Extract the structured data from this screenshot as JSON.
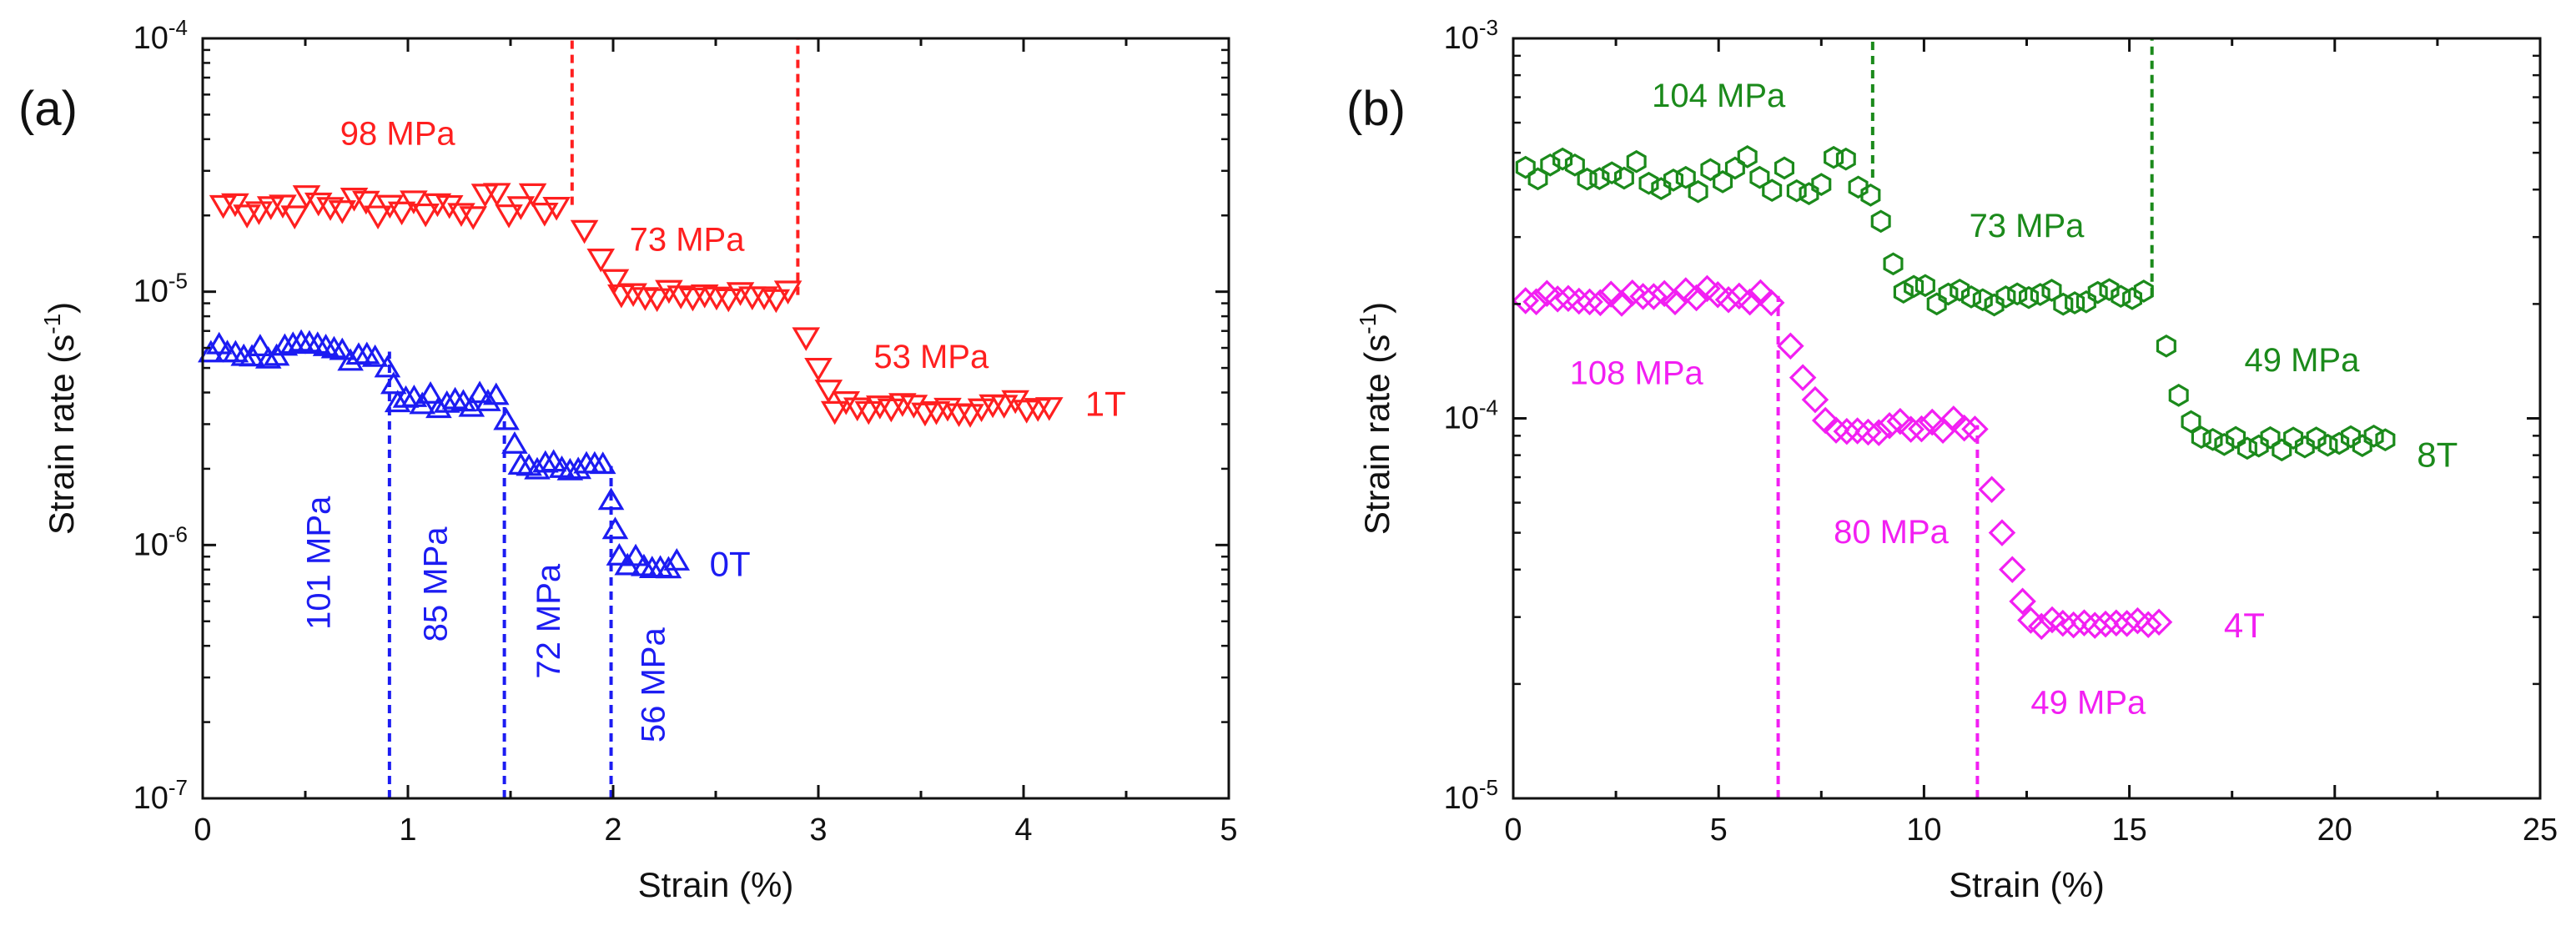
{
  "chart_data": [
    {
      "type": "scatter",
      "panel_label": "(a)",
      "xlabel": "Strain (%)",
      "ylabel_main": "Strain rate (s",
      "ylabel_sup": "-1",
      "ylabel_close": ")",
      "yscale": "log",
      "xlim": [
        0,
        5
      ],
      "ylim": [
        1e-07,
        0.0001
      ],
      "xticks": [
        0,
        1,
        2,
        3,
        4,
        5
      ],
      "xtick_labels": [
        "0",
        "1",
        "2",
        "3",
        "4",
        "5"
      ],
      "ytick_exponents": [
        -7,
        -6,
        -5,
        -4
      ],
      "ytick_base": "10",
      "ytick_exp_labels": [
        "-7",
        "-6",
        "-5",
        "-4"
      ],
      "series": [
        {
          "name": "1T",
          "marker": "triangle-down",
          "color": "#ff1f1f",
          "label_at": [
            4.3,
            3.6e-06
          ],
          "segments": [
            {
              "from": 0.1,
              "to": 1.78,
              "step": 0.058,
              "rate": 2.2e-05,
              "jitter": 0.05
            },
            {
              "points": [
                [
                  1.86,
                  1.75e-05
                ],
                [
                  1.94,
                  1.35e-05
                ],
                [
                  2.01,
                  1.12e-05
                ]
              ]
            },
            {
              "from": 2.04,
              "to": 2.9,
              "step": 0.058,
              "rate": 9.7e-06,
              "jitter": 0.02
            },
            {
              "points": [
                [
                  2.94,
                  6.6e-06
                ],
                [
                  3.0,
                  5e-06
                ],
                [
                  3.05,
                  4.1e-06
                ]
              ]
            },
            {
              "from": 3.08,
              "to": 4.16,
              "step": 0.055,
              "rate": 3.5e-06,
              "jitter": 0.03
            }
          ]
        },
        {
          "name": "0T",
          "marker": "triangle-up",
          "color": "#1c1cf2",
          "label_at": [
            2.47,
            8.4e-07
          ],
          "segments": [
            {
              "from": 0.04,
              "to": 0.86,
              "step": 0.04,
              "rate": 5.8e-06,
              "jitter": 0.04
            },
            {
              "points": [
                [
                  0.9,
                  5e-06
                ],
                [
                  0.93,
                  4.3e-06
                ]
              ]
            },
            {
              "from": 0.95,
              "to": 1.44,
              "step": 0.04,
              "rate": 3.7e-06,
              "jitter": 0.03
            },
            {
              "points": [
                [
                  1.48,
                  3.1e-06
                ],
                [
                  1.52,
                  2.5e-06
                ]
              ]
            },
            {
              "from": 1.55,
              "to": 1.96,
              "step": 0.04,
              "rate": 2.05e-06,
              "jitter": 0.02
            },
            {
              "points": [
                [
                  1.99,
                  1.5e-06
                ],
                [
                  2.01,
                  1.15e-06
                ]
              ]
            },
            {
              "from": 2.03,
              "to": 2.31,
              "step": 0.04,
              "rate": 8.6e-07,
              "jitter": 0.03
            }
          ]
        }
      ],
      "vlines": [
        {
          "x": 1.8,
          "from": 2.2e-05,
          "to": 0.0001,
          "color": "#ff1f1f"
        },
        {
          "x": 2.9,
          "from": 9.7e-06,
          "to": 0.0001,
          "color": "#ff1f1f"
        },
        {
          "x": 0.91,
          "from": 1e-07,
          "to": 5.8e-06,
          "color": "#1c1cf2"
        },
        {
          "x": 1.47,
          "from": 1e-07,
          "to": 3.7e-06,
          "color": "#1c1cf2"
        },
        {
          "x": 1.99,
          "from": 1e-07,
          "to": 2.05e-06,
          "color": "#1c1cf2"
        }
      ],
      "annotations": [
        {
          "text": "98 MPa",
          "x": 0.95,
          "y": 3.8e-05,
          "color": "#ff1f1f",
          "rotate": false
        },
        {
          "text": "73 MPa",
          "x": 2.36,
          "y": 1.45e-05,
          "color": "#ff1f1f",
          "rotate": false
        },
        {
          "text": "53 MPa",
          "x": 3.55,
          "y": 5e-06,
          "color": "#ff1f1f",
          "rotate": false
        },
        {
          "text": "101 MPa",
          "x": 0.62,
          "y": 8.5e-07,
          "color": "#1c1cf2",
          "rotate": true
        },
        {
          "text": "85 MPa",
          "x": 1.19,
          "y": 7e-07,
          "color": "#1c1cf2",
          "rotate": true
        },
        {
          "text": "72 MPa",
          "x": 1.74,
          "y": 5e-07,
          "color": "#1c1cf2",
          "rotate": true
        },
        {
          "text": "56 MPa",
          "x": 2.25,
          "y": 2.8e-07,
          "color": "#1c1cf2",
          "rotate": true
        }
      ]
    },
    {
      "type": "scatter",
      "panel_label": "(b)",
      "xlabel": "Strain (%)",
      "ylabel_main": "Strain rate (s",
      "ylabel_sup": "-1",
      "ylabel_close": ")",
      "yscale": "log",
      "xlim": [
        0,
        25
      ],
      "ylim": [
        1e-05,
        0.001
      ],
      "xticks": [
        0,
        5,
        10,
        15,
        20,
        25
      ],
      "xtick_labels": [
        "0",
        "5",
        "10",
        "15",
        "20",
        "25"
      ],
      "ytick_exponents": [
        -5,
        -4,
        -3
      ],
      "ytick_base": "10",
      "ytick_exp_labels": [
        "-5",
        "-4",
        "-3"
      ],
      "series": [
        {
          "name": "8T",
          "marker": "hexagon",
          "color": "#1b8a1b",
          "label_at": [
            22.0,
            8e-05
          ],
          "segments": [
            {
              "from": 0.3,
              "to": 8.75,
              "step": 0.3,
              "rate": 0.00043,
              "jitter": 0.06
            },
            {
              "points": [
                [
                  8.95,
                  0.00033
                ],
                [
                  9.25,
                  0.000255
                ],
                [
                  9.5,
                  0.000215
                ]
              ]
            },
            {
              "from": 9.75,
              "to": 15.6,
              "step": 0.28,
              "rate": 0.00021,
              "jitter": 0.03
            },
            {
              "points": [
                [
                  15.9,
                  0.000155
                ],
                [
                  16.2,
                  0.000115
                ],
                [
                  16.5,
                  9.8e-05
                ]
              ]
            },
            {
              "from": 16.75,
              "to": 21.4,
              "step": 0.28,
              "rate": 8.6e-05,
              "jitter": 0.02
            }
          ]
        },
        {
          "name": "4T",
          "marker": "diamond",
          "color": "#f21ff2",
          "label_at": [
            17.3,
            2.85e-05
          ],
          "segments": [
            {
              "from": 0.3,
              "to": 6.4,
              "step": 0.26,
              "rate": 0.00021,
              "jitter": 0.02
            },
            {
              "points": [
                [
                  6.75,
                  0.000155
                ],
                [
                  7.05,
                  0.000128
                ],
                [
                  7.35,
                  0.000112
                ]
              ]
            },
            {
              "from": 7.6,
              "to": 11.3,
              "step": 0.26,
              "rate": 9.6e-05,
              "jitter": 0.02
            },
            {
              "points": [
                [
                  11.65,
                  6.5e-05
                ],
                [
                  11.9,
                  5e-05
                ],
                [
                  12.15,
                  4e-05
                ],
                [
                  12.4,
                  3.3e-05
                ]
              ]
            },
            {
              "from": 12.6,
              "to": 15.95,
              "step": 0.26,
              "rate": 2.9e-05,
              "jitter": 0.01
            }
          ]
        }
      ],
      "vlines": [
        {
          "x": 8.75,
          "from": 0.00043,
          "to": 0.001,
          "color": "#1b8a1b"
        },
        {
          "x": 15.55,
          "from": 0.00021,
          "to": 0.001,
          "color": "#1b8a1b"
        },
        {
          "x": 6.45,
          "from": 1e-05,
          "to": 0.00021,
          "color": "#f21ff2"
        },
        {
          "x": 11.3,
          "from": 1e-05,
          "to": 9.6e-05,
          "color": "#f21ff2"
        }
      ],
      "annotations": [
        {
          "text": "104 MPa",
          "x": 5.0,
          "y": 0.00066,
          "color": "#1b8a1b",
          "rotate": false
        },
        {
          "text": "73 MPa",
          "x": 12.5,
          "y": 0.0003,
          "color": "#1b8a1b",
          "rotate": false
        },
        {
          "text": "49 MPa",
          "x": 19.2,
          "y": 0.000133,
          "color": "#1b8a1b",
          "rotate": false
        },
        {
          "text": "108 MPa",
          "x": 3.0,
          "y": 0.000123,
          "color": "#f21ff2",
          "rotate": false
        },
        {
          "text": "80 MPa",
          "x": 9.2,
          "y": 4.7e-05,
          "color": "#f21ff2",
          "rotate": false
        },
        {
          "text": "49 MPa",
          "x": 14.0,
          "y": 1.67e-05,
          "color": "#f21ff2",
          "rotate": false
        }
      ]
    }
  ]
}
